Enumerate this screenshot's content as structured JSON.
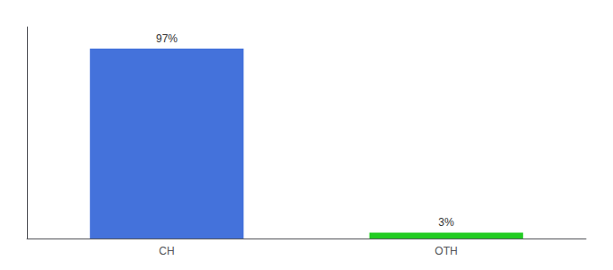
{
  "chart_data": {
    "type": "bar",
    "categories": [
      "CH",
      "OTH"
    ],
    "values": [
      97,
      3
    ],
    "value_labels": [
      "97%",
      "3%"
    ],
    "data_labels": true,
    "colors": [
      "#4472db",
      "#22cc22"
    ],
    "ylim": [
      0,
      108
    ],
    "tick_labels": "x",
    "grid": false
  }
}
